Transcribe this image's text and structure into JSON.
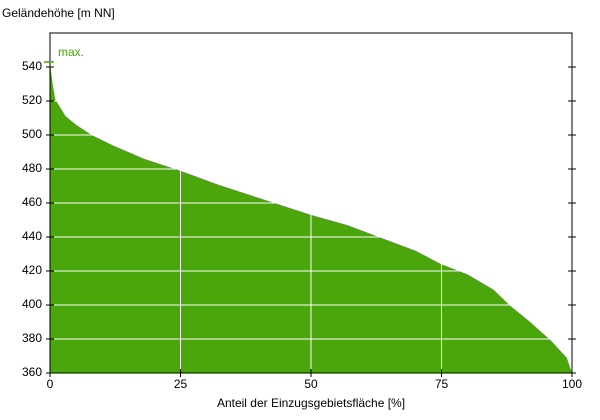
{
  "chart_data": {
    "type": "area",
    "y_label": "Geländehöhe [m NN]",
    "x_label": "Anteil der Einzugsgebietsfläche [%]",
    "annotation": "max.",
    "color": "#4aa60a",
    "x": [
      0,
      0.5,
      1,
      2,
      3,
      5,
      8,
      12,
      18,
      25,
      32,
      40,
      50,
      57,
      63,
      70,
      75,
      80,
      85,
      88,
      92,
      96,
      99,
      100
    ],
    "values": [
      543,
      530,
      521,
      516,
      511,
      506,
      500,
      494,
      486,
      479,
      471,
      463,
      453,
      447,
      440,
      432,
      424,
      418,
      409,
      400,
      390,
      379,
      369,
      360
    ],
    "xlim": [
      0,
      100
    ],
    "ylim": [
      360,
      560
    ],
    "xticks": [
      0,
      25,
      50,
      75,
      100
    ],
    "yticks": [
      360,
      380,
      400,
      420,
      440,
      460,
      480,
      500,
      520,
      540
    ],
    "grid": true
  }
}
